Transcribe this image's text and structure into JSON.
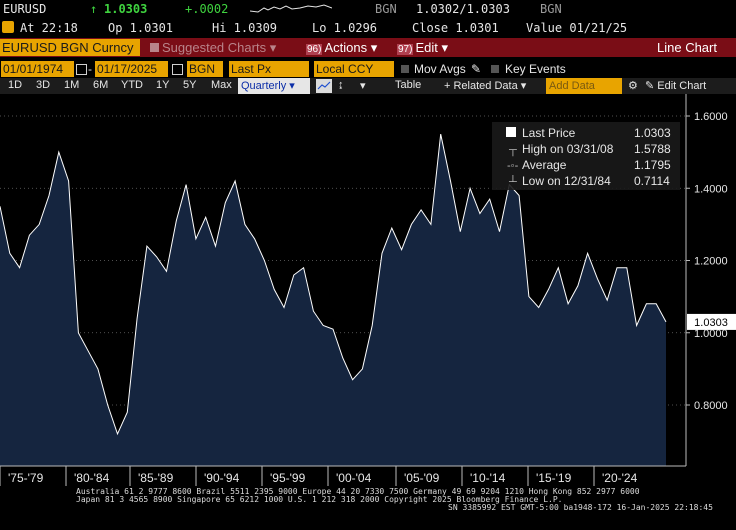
{
  "quote": {
    "ticker": "EURUSD",
    "last": "1.0303",
    "change": "+.0002",
    "bid_ask_label": "BGN",
    "bid_ask": "1.0302/1.0303",
    "bid_ask_suffix": "BGN"
  },
  "stats": {
    "at": "At 22:18",
    "op": "Op 1.0301",
    "hi": "Hi 1.0309",
    "lo": "Lo 1.0296",
    "close": "Close 1.0301",
    "value": "Value 01/21/25"
  },
  "menu": {
    "security": "EURUSD BGN Curncy",
    "suggested": "Suggested Charts",
    "actions_num": "96)",
    "actions": "Actions",
    "edit_num": "97)",
    "edit": "Edit",
    "title": "Line Chart"
  },
  "inputs": {
    "start_date": "01/01/1974",
    "end_date": "01/17/2025",
    "source": "BGN",
    "field": "Last Px",
    "currency": "Local CCY",
    "mov_avgs": "Mov Avgs",
    "key_events": "Key Events"
  },
  "toolbar": {
    "periods": [
      "1D",
      "3D",
      "1M",
      "6M",
      "YTD",
      "1Y",
      "5Y",
      "Max"
    ],
    "frequency": "Quarterly",
    "table": "Table",
    "related": "+ Related Data",
    "add_data": "Add Data",
    "edit_chart": "Edit Chart"
  },
  "legend": {
    "last_price_label": "Last Price",
    "last_price": "1.0303",
    "high_label": "High on 03/31/08",
    "high": "1.5788",
    "avg_label": "Average",
    "avg": "1.1795",
    "low_label": "Low on 12/31/84",
    "low": "0.7114"
  },
  "chart_data": {
    "type": "area",
    "xlabels": [
      "'75-'79",
      "'80-'84",
      "'85-'89",
      "'90-'94",
      "'95-'99",
      "'00-'04",
      "'05-'09",
      "'10-'14",
      "'15-'19",
      "'20-'24"
    ],
    "yticks": [
      "1.6000",
      "1.4000",
      "1.2000",
      "1.0000",
      "0.8000"
    ],
    "ylim": [
      0.6,
      1.65
    ],
    "last_label": "1.0303",
    "x": [
      0,
      3,
      6,
      9,
      12,
      15,
      18,
      21,
      24,
      27,
      30,
      33,
      36,
      39,
      42,
      45,
      48,
      51,
      54,
      57,
      60,
      63,
      66,
      69,
      72,
      75,
      78,
      81,
      84,
      87,
      90,
      93,
      96,
      99,
      102,
      105,
      108,
      111,
      114,
      117,
      120,
      123,
      126,
      129,
      132,
      135,
      138,
      141,
      144,
      147,
      150,
      153,
      156,
      159,
      162,
      165,
      168,
      171,
      174,
      177,
      180,
      183,
      186,
      189,
      192,
      195,
      198,
      201,
      204
    ],
    "values": [
      1.35,
      1.22,
      1.18,
      1.27,
      1.3,
      1.38,
      1.5,
      1.42,
      1.0,
      0.95,
      0.9,
      0.8,
      0.72,
      0.78,
      1.04,
      1.24,
      1.21,
      1.17,
      1.31,
      1.41,
      1.26,
      1.32,
      1.24,
      1.36,
      1.42,
      1.3,
      1.26,
      1.2,
      1.12,
      1.07,
      1.16,
      1.18,
      1.06,
      1.02,
      1.01,
      0.93,
      0.87,
      0.9,
      1.02,
      1.22,
      1.29,
      1.23,
      1.3,
      1.34,
      1.3,
      1.55,
      1.42,
      1.28,
      1.4,
      1.33,
      1.37,
      1.28,
      1.41,
      1.38,
      1.1,
      1.07,
      1.12,
      1.18,
      1.08,
      1.13,
      1.22,
      1.15,
      1.09,
      1.18,
      1.18,
      1.02,
      1.08,
      1.08,
      1.03
    ]
  },
  "footer": {
    "line1": "Australia 61 2 9777 8600 Brazil 5511 2395 9000 Europe 44 20 7330 7500 Germany 49 69 9204 1210 Hong Kong 852 2977 6000",
    "line2": "Japan 81 3 4565 8900        Singapore 65 6212 1000        U.S. 1 212 318 2000           Copyright 2025 Bloomberg Finance L.P.",
    "line3": "SN 3385992 EST  GMT-5:00 ba1948-172 16-Jan-2025 22:18:45"
  }
}
